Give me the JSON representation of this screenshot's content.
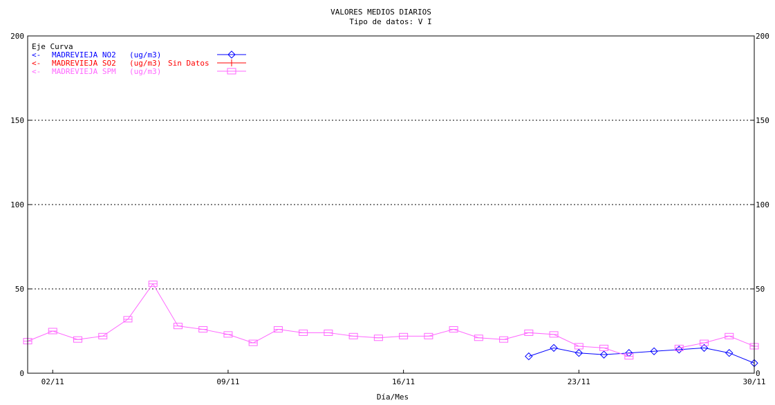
{
  "chart_data": {
    "type": "line",
    "title": "VALORES MEDIOS DIARIOS",
    "subtitle": "Tipo de datos:  V I",
    "xlabel": "Día/Mes",
    "ylabel": "",
    "ylim": [
      0,
      200
    ],
    "yticks": [
      0,
      50,
      100,
      150,
      200
    ],
    "xlim": [
      1,
      30
    ],
    "xticks": [
      {
        "day": 2,
        "label": "02/11"
      },
      {
        "day": 9,
        "label": "09/11"
      },
      {
        "day": 16,
        "label": "16/11"
      },
      {
        "day": 23,
        "label": "23/11"
      },
      {
        "day": 30,
        "label": "30/11"
      }
    ],
    "grid": "dotted horizontal",
    "legend_header": "Eje Curva",
    "legend_placement": "top-left",
    "series": [
      {
        "name": "MADREVIEJA NO2",
        "unit": "(ug/m3)",
        "note": "",
        "axis_marker": "<-",
        "color": "#0000ff",
        "marker": "diamond",
        "x": [
          21,
          22,
          23,
          24,
          25,
          26,
          27,
          28,
          29,
          30
        ],
        "values": [
          10,
          15,
          12,
          11,
          12,
          13,
          14,
          15,
          12,
          6
        ]
      },
      {
        "name": "MADREVIEJA SO2",
        "unit": "(ug/m3)",
        "note": "Sin Datos",
        "axis_marker": "<-",
        "color": "#ff0000",
        "marker": "plus",
        "x": [],
        "values": []
      },
      {
        "name": "MADREVIEJA SPM",
        "unit": "(ug/m3)",
        "note": "",
        "axis_marker": "<-",
        "color": "#ff66ff",
        "marker": "square",
        "x": [
          1,
          2,
          3,
          4,
          5,
          6,
          7,
          8,
          9,
          10,
          11,
          12,
          13,
          14,
          15,
          16,
          17,
          18,
          19,
          20,
          21,
          22,
          23,
          24,
          25,
          26,
          27,
          28,
          29,
          30
        ],
        "values": [
          19,
          25,
          20,
          22,
          32,
          53,
          28,
          26,
          23,
          18,
          26,
          24,
          24,
          22,
          21,
          22,
          22,
          26,
          21,
          20,
          24,
          23,
          16,
          15,
          10,
          null,
          15,
          18,
          22,
          16
        ]
      }
    ]
  }
}
